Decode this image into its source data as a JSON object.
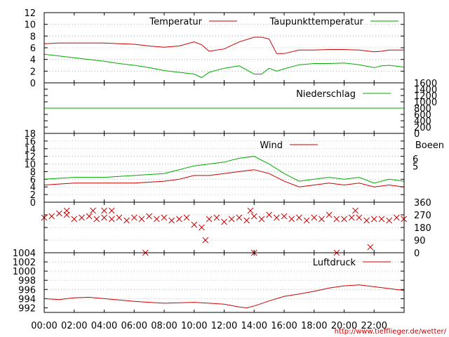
{
  "chart_data": [
    {
      "type": "line",
      "ylim": [
        0,
        12
      ],
      "yticks": [
        "0",
        "2",
        "4",
        "6",
        "8",
        "10",
        "12"
      ],
      "grid": true,
      "legend": "top-right",
      "series": [
        {
          "name": "Temperatur",
          "color": "#cc0000",
          "x": [
            "00:00",
            "01:00",
            "02:00",
            "03:00",
            "04:00",
            "05:00",
            "06:00",
            "07:00",
            "08:00",
            "09:00",
            "10:00",
            "10:30",
            "11:00",
            "12:00",
            "13:00",
            "14:00",
            "14:30",
            "15:00",
            "15:30",
            "16:00",
            "17:00",
            "18:00",
            "19:00",
            "20:00",
            "21:00",
            "22:00",
            "22:30",
            "23:00",
            "23:59"
          ],
          "y": [
            6.7,
            6.8,
            6.8,
            6.8,
            6.8,
            6.7,
            6.6,
            6.3,
            6.1,
            6.3,
            7.0,
            6.5,
            5.4,
            5.8,
            7.0,
            7.8,
            7.8,
            7.5,
            5.0,
            5.0,
            5.6,
            5.6,
            5.7,
            5.7,
            5.6,
            5.3,
            5.4,
            5.6,
            5.6
          ]
        },
        {
          "name": "Taupunkttemperatur",
          "color": "#00aa00",
          "x": [
            "00:00",
            "01:00",
            "02:00",
            "03:00",
            "04:00",
            "05:00",
            "06:00",
            "07:00",
            "08:00",
            "09:00",
            "10:00",
            "10:30",
            "11:00",
            "12:00",
            "13:00",
            "14:00",
            "14:30",
            "15:00",
            "15:30",
            "16:00",
            "17:00",
            "18:00",
            "19:00",
            "20:00",
            "21:00",
            "22:00",
            "22:30",
            "23:00",
            "23:59"
          ],
          "y": [
            4.9,
            4.6,
            4.3,
            4.0,
            3.7,
            3.3,
            3.0,
            2.6,
            2.1,
            1.8,
            1.5,
            0.9,
            1.8,
            2.5,
            2.9,
            1.5,
            1.5,
            2.5,
            2.0,
            2.4,
            3.1,
            3.3,
            3.3,
            3.4,
            3.1,
            2.6,
            2.9,
            3.0,
            2.7
          ]
        }
      ]
    },
    {
      "type": "line",
      "ylim": [
        0,
        1600
      ],
      "yticks": [
        "0",
        "200",
        "400",
        "600",
        "800",
        "1000",
        "1200",
        "1400",
        "1600"
      ],
      "grid": false,
      "legend": "top-right",
      "series": [
        {
          "name": "Niederschlag",
          "color": "#00aa00",
          "x": [
            "00:00",
            "23:59"
          ],
          "y": [
            800,
            800
          ]
        }
      ]
    },
    {
      "type": "line",
      "ylim": [
        0,
        18
      ],
      "yticks": [
        "0",
        "2",
        "4",
        "6",
        "8",
        "10",
        "12",
        "14",
        "16",
        "18"
      ],
      "right_labels": [
        "5",
        "6"
      ],
      "grid": true,
      "legend": "top-right",
      "series": [
        {
          "name": "Wind",
          "color": "#cc0000",
          "x": [
            "00:00",
            "02:00",
            "04:00",
            "06:00",
            "08:00",
            "09:00",
            "10:00",
            "11:00",
            "12:00",
            "13:00",
            "14:00",
            "15:00",
            "16:00",
            "17:00",
            "18:00",
            "19:00",
            "20:00",
            "21:00",
            "22:00",
            "23:00",
            "23:59"
          ],
          "y": [
            4.5,
            5.0,
            5.0,
            5.0,
            5.5,
            6.0,
            7.0,
            7.0,
            7.5,
            8.0,
            8.5,
            7.5,
            5.5,
            4.0,
            4.5,
            5.0,
            4.5,
            5.0,
            4.0,
            4.5,
            4.0
          ]
        },
        {
          "name": "Boeen",
          "color": "#00aa00",
          "x": [
            "00:00",
            "02:00",
            "04:00",
            "06:00",
            "08:00",
            "09:00",
            "10:00",
            "11:00",
            "12:00",
            "13:00",
            "14:00",
            "15:00",
            "16:00",
            "17:00",
            "18:00",
            "19:00",
            "20:00",
            "21:00",
            "22:00",
            "23:00",
            "23:59"
          ],
          "y": [
            6.0,
            6.5,
            6.5,
            7.0,
            7.5,
            8.5,
            9.5,
            10.0,
            10.5,
            11.5,
            12.0,
            10.0,
            7.5,
            5.5,
            6.0,
            6.5,
            6.0,
            6.5,
            5.0,
            6.0,
            5.5
          ]
        }
      ]
    },
    {
      "type": "scatter",
      "ylim": [
        0,
        360
      ],
      "yticks": [
        "0",
        "90",
        "180",
        "270",
        "360"
      ],
      "grid": true,
      "series": [
        {
          "name": "",
          "color": "#cc0000",
          "marker": "x",
          "x": [
            "00:00",
            "00:30",
            "01:00",
            "01:30",
            "02:00",
            "02:30",
            "03:00",
            "03:30",
            "04:00",
            "04:30",
            "05:00",
            "05:30",
            "06:00",
            "06:30",
            "07:00",
            "07:30",
            "08:00",
            "08:30",
            "09:00",
            "09:30",
            "10:00",
            "10:30",
            "11:00",
            "11:30",
            "12:00",
            "12:30",
            "13:00",
            "13:30",
            "14:00",
            "14:30",
            "15:00",
            "15:30",
            "16:00",
            "16:30",
            "17:00",
            "17:30",
            "18:00",
            "18:30",
            "19:00",
            "19:30",
            "20:00",
            "20:30",
            "21:00",
            "21:30",
            "22:00",
            "22:30",
            "23:00",
            "23:30",
            "23:59"
          ],
          "y": [
            250,
            260,
            280,
            270,
            240,
            250,
            260,
            240,
            250,
            240,
            250,
            230,
            250,
            240,
            260,
            240,
            250,
            230,
            240,
            250,
            200,
            180,
            240,
            250,
            220,
            240,
            250,
            230,
            260,
            240,
            270,
            250,
            260,
            240,
            250,
            230,
            250,
            240,
            270,
            240,
            240,
            250,
            250,
            230,
            240,
            240,
            230,
            250,
            240
          ]
        }
      ],
      "outliers": [
        {
          "x": "01:30",
          "y": 300
        },
        {
          "x": "03:15",
          "y": 300
        },
        {
          "x": "04:00",
          "y": 300
        },
        {
          "x": "04:30",
          "y": 300
        },
        {
          "x": "06:45",
          "y": 0
        },
        {
          "x": "10:45",
          "y": 90
        },
        {
          "x": "13:45",
          "y": 300
        },
        {
          "x": "14:00",
          "y": 0
        },
        {
          "x": "19:30",
          "y": 0
        },
        {
          "x": "20:45",
          "y": 300
        },
        {
          "x": "21:45",
          "y": 40
        }
      ]
    },
    {
      "type": "line",
      "ylim": [
        991,
        1004
      ],
      "yticks": [
        "992",
        "994",
        "996",
        "998",
        "1000",
        "1002",
        "1004"
      ],
      "grid": true,
      "legend": "top-right",
      "series": [
        {
          "name": "Luftdruck",
          "color": "#cc0000",
          "x": [
            "00:00",
            "01:00",
            "02:00",
            "03:00",
            "04:00",
            "05:00",
            "06:00",
            "07:00",
            "08:00",
            "09:00",
            "10:00",
            "11:00",
            "12:00",
            "13:00",
            "13:30",
            "14:00",
            "15:00",
            "16:00",
            "17:00",
            "18:00",
            "19:00",
            "20:00",
            "21:00",
            "22:00",
            "23:00",
            "23:59"
          ],
          "y": [
            994.0,
            993.8,
            994.2,
            994.3,
            994.0,
            993.7,
            993.4,
            993.2,
            993.0,
            993.1,
            993.2,
            993.0,
            992.8,
            992.2,
            992.0,
            992.4,
            993.5,
            994.5,
            995.0,
            995.6,
            996.3,
            996.8,
            997.0,
            996.6,
            996.2,
            995.8
          ]
        }
      ]
    }
  ],
  "x_axis": {
    "range": [
      "00:00",
      "24:00"
    ],
    "ticks": [
      "00:00",
      "02:00",
      "04:00",
      "06:00",
      "08:00",
      "10:00",
      "12:00",
      "14:00",
      "16:00",
      "18:00",
      "20:00",
      "22:00"
    ]
  },
  "footer_url": "http://www.tiefflieger.de/wetter/"
}
